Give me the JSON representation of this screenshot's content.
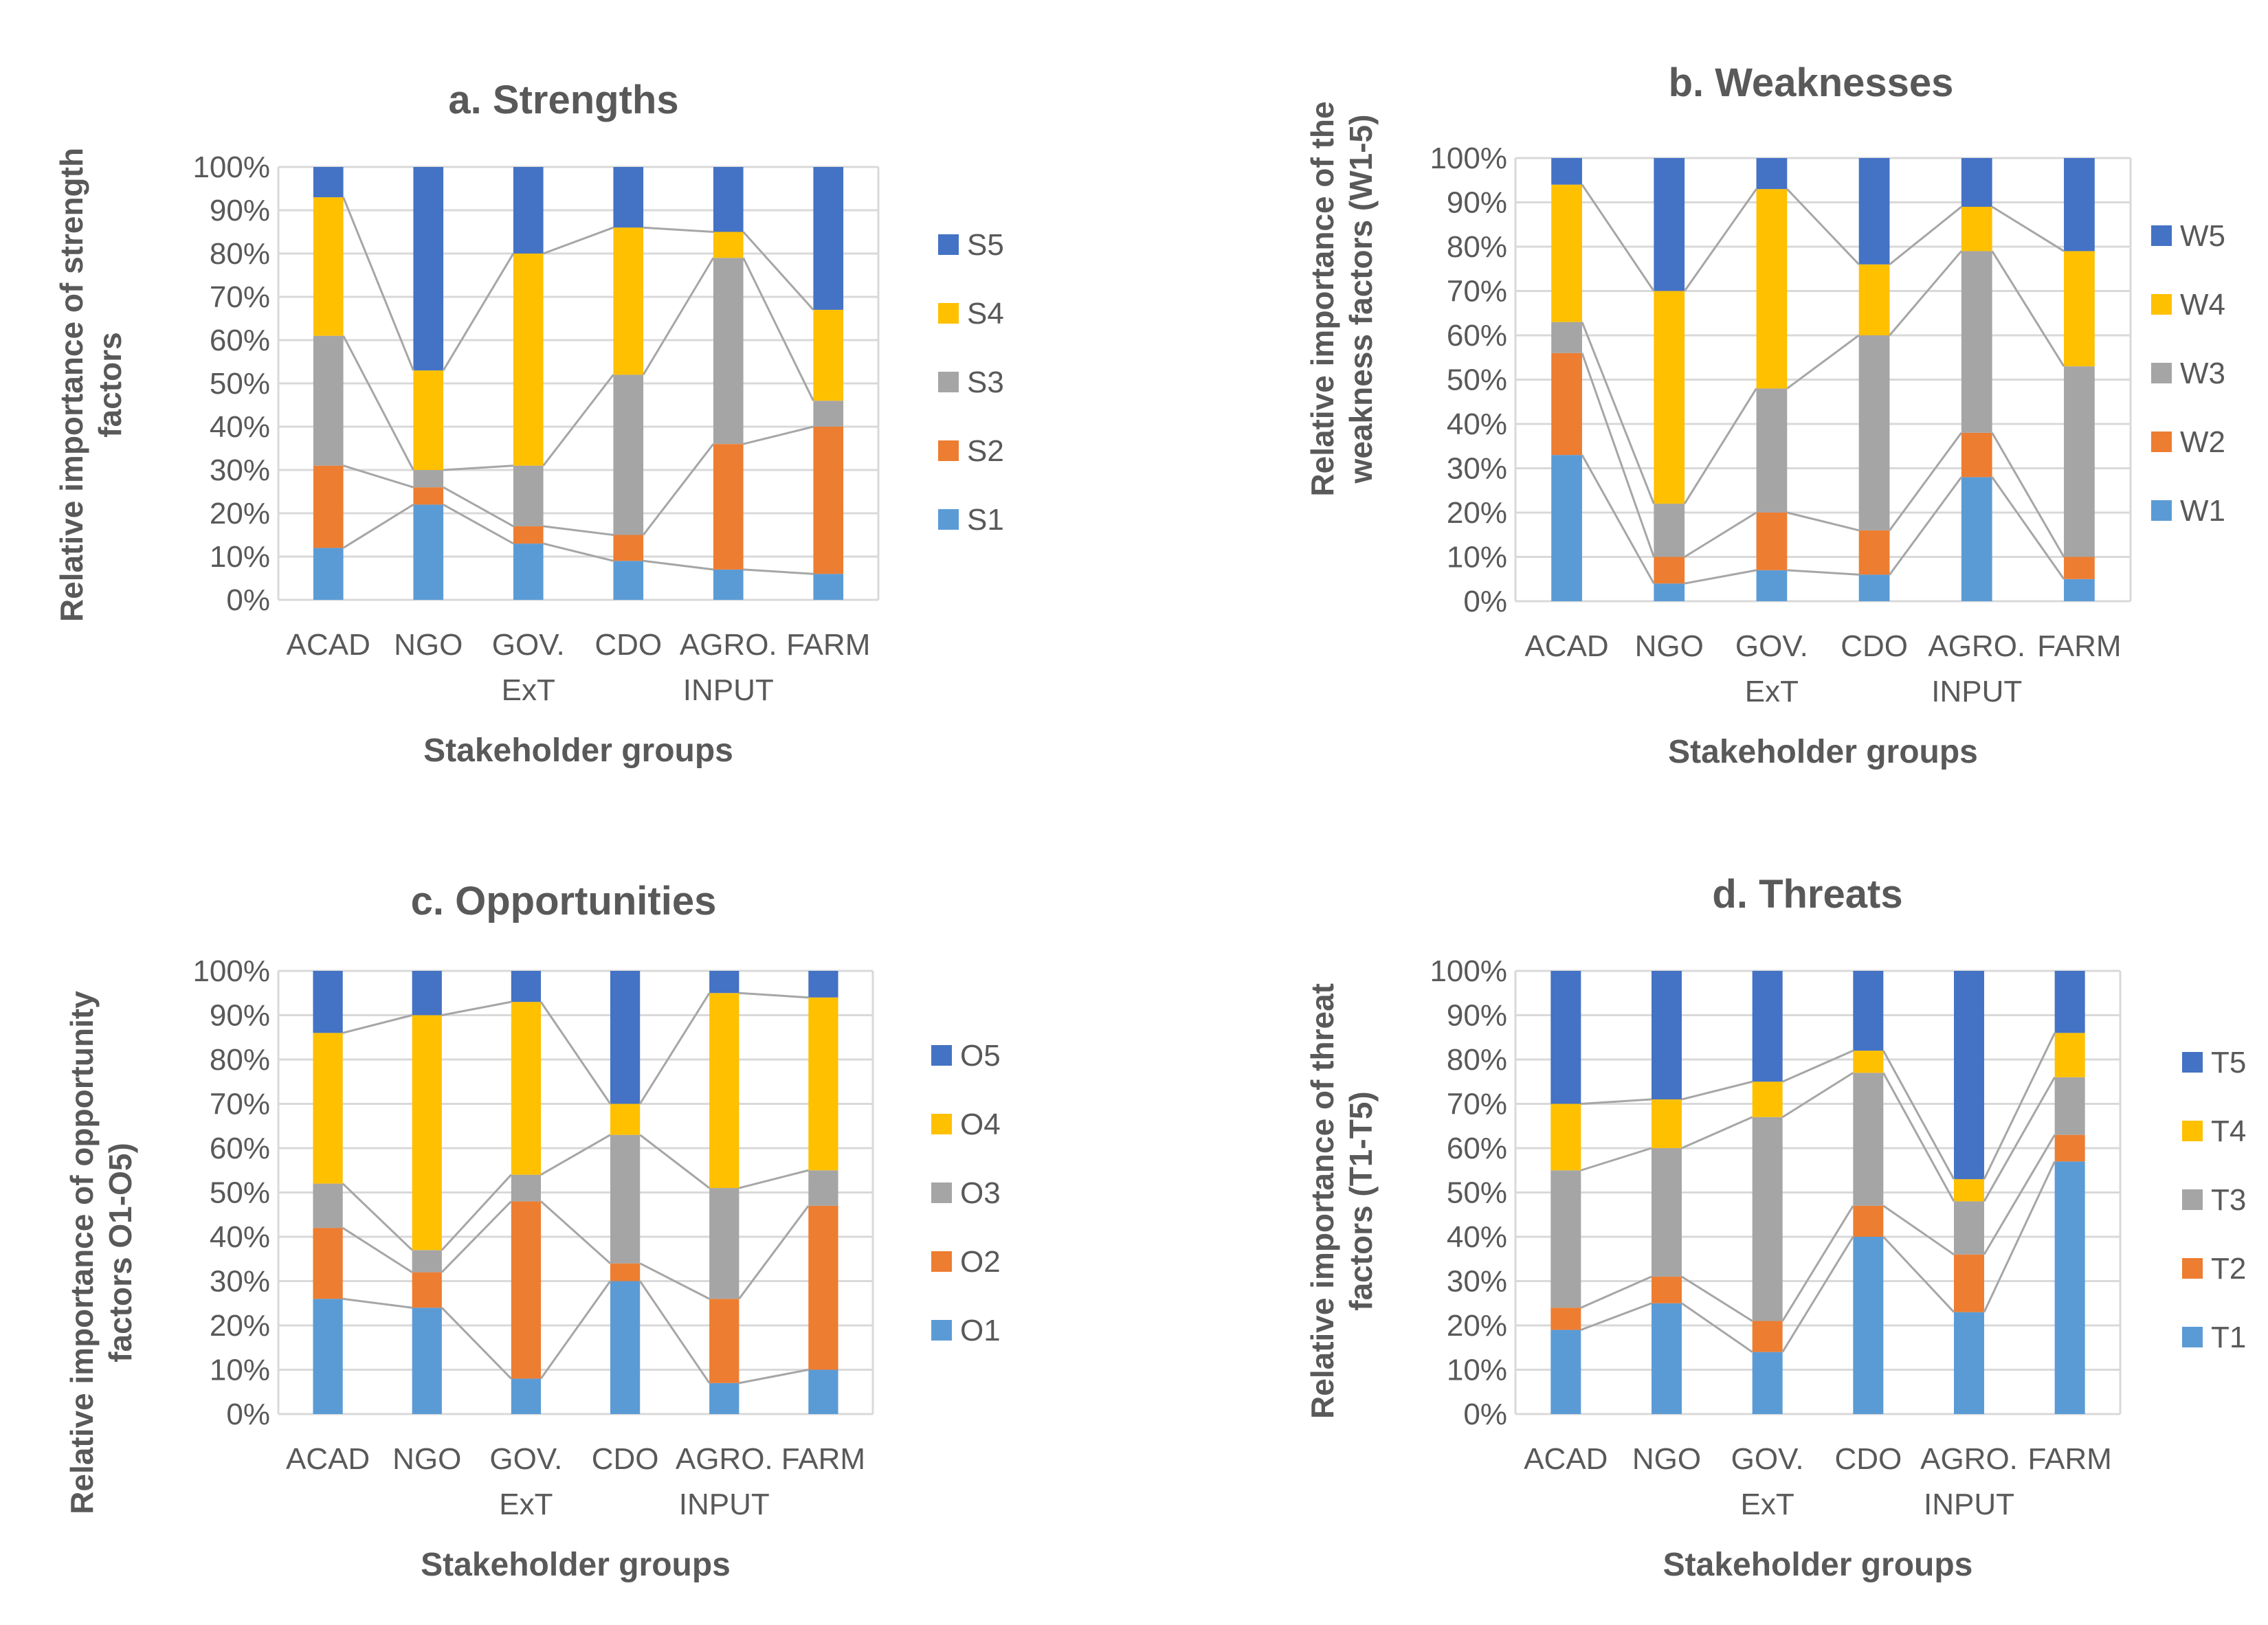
{
  "chart_data": [
    {
      "type": "bar",
      "stacked": true,
      "normalized": true,
      "title": "a. Strengths",
      "ylabel_lines": [
        "Relative importance of strength",
        "factors"
      ],
      "xlabel": "Stakeholder groups",
      "categories": [
        [
          "ACAD"
        ],
        [
          "NGO"
        ],
        [
          "GOV.",
          "ExT"
        ],
        [
          "CDO"
        ],
        [
          "AGRO.",
          "INPUT"
        ],
        [
          "FARM"
        ]
      ],
      "yticks": [
        "0%",
        "10%",
        "20%",
        "30%",
        "40%",
        "50%",
        "60%",
        "70%",
        "80%",
        "90%",
        "100%"
      ],
      "ylim": [
        0,
        100
      ],
      "series": [
        {
          "name": "S1",
          "values": [
            12,
            22,
            13,
            9,
            7,
            6
          ]
        },
        {
          "name": "S2",
          "values": [
            19,
            4,
            4,
            6,
            29,
            34
          ]
        },
        {
          "name": "S3",
          "values": [
            30,
            4,
            14,
            37,
            43,
            6
          ]
        },
        {
          "name": "S4",
          "values": [
            32,
            23,
            49,
            34,
            6,
            21
          ]
        },
        {
          "name": "S5",
          "values": [
            7,
            47,
            20,
            14,
            15,
            33
          ]
        }
      ]
    },
    {
      "type": "bar",
      "stacked": true,
      "normalized": true,
      "title": "b. Weaknesses",
      "ylabel_lines": [
        "Relative importance of the",
        "weakness factors (W1-5)"
      ],
      "xlabel": "Stakeholder groups",
      "categories": [
        [
          "ACAD"
        ],
        [
          "NGO"
        ],
        [
          "GOV.",
          "ExT"
        ],
        [
          "CDO"
        ],
        [
          "AGRO.",
          "INPUT"
        ],
        [
          "FARM"
        ]
      ],
      "yticks": [
        "0%",
        "10%",
        "20%",
        "30%",
        "40%",
        "50%",
        "60%",
        "70%",
        "80%",
        "90%",
        "100%"
      ],
      "ylim": [
        0,
        100
      ],
      "series": [
        {
          "name": "W1",
          "values": [
            33,
            4,
            7,
            6,
            28,
            5
          ]
        },
        {
          "name": "W2",
          "values": [
            23,
            6,
            13,
            10,
            10,
            5
          ]
        },
        {
          "name": "W3",
          "values": [
            7,
            12,
            28,
            44,
            41,
            43
          ]
        },
        {
          "name": "W4",
          "values": [
            31,
            48,
            45,
            16,
            10,
            26
          ]
        },
        {
          "name": "W5",
          "values": [
            6,
            30,
            7,
            24,
            11,
            21
          ]
        }
      ]
    },
    {
      "type": "bar",
      "stacked": true,
      "normalized": true,
      "title": "c. Opportunities",
      "ylabel_lines": [
        "Relative importance of opportunity",
        "factors O1-O5)"
      ],
      "xlabel": "Stakeholder groups",
      "categories": [
        [
          "ACAD"
        ],
        [
          "NGO"
        ],
        [
          "GOV.",
          "ExT"
        ],
        [
          "CDO"
        ],
        [
          "AGRO.",
          "INPUT"
        ],
        [
          "FARM"
        ]
      ],
      "yticks": [
        "0%",
        "10%",
        "20%",
        "30%",
        "40%",
        "50%",
        "60%",
        "70%",
        "80%",
        "90%",
        "100%"
      ],
      "ylim": [
        0,
        100
      ],
      "series": [
        {
          "name": "O1",
          "values": [
            26,
            24,
            8,
            30,
            7,
            10
          ]
        },
        {
          "name": "O2",
          "values": [
            16,
            8,
            40,
            4,
            19,
            37
          ]
        },
        {
          "name": "O3",
          "values": [
            10,
            5,
            6,
            29,
            25,
            8
          ]
        },
        {
          "name": "O4",
          "values": [
            34,
            53,
            39,
            7,
            44,
            39
          ]
        },
        {
          "name": "O5",
          "values": [
            14,
            10,
            7,
            30,
            5,
            6
          ]
        }
      ]
    },
    {
      "type": "bar",
      "stacked": true,
      "normalized": true,
      "title": "d. Threats",
      "ylabel_lines": [
        "Relative importance of threat",
        "factors (T1-T5)"
      ],
      "xlabel": "Stakeholder groups",
      "categories": [
        [
          "ACAD"
        ],
        [
          "NGO"
        ],
        [
          "GOV.",
          "ExT"
        ],
        [
          "CDO"
        ],
        [
          "AGRO.",
          "INPUT"
        ],
        [
          "FARM"
        ]
      ],
      "yticks": [
        "0%",
        "10%",
        "20%",
        "30%",
        "40%",
        "50%",
        "60%",
        "70%",
        "80%",
        "90%",
        "100%"
      ],
      "ylim": [
        0,
        100
      ],
      "series": [
        {
          "name": "T1",
          "values": [
            19,
            25,
            14,
            40,
            23,
            57
          ]
        },
        {
          "name": "T2",
          "values": [
            5,
            6,
            7,
            7,
            13,
            6
          ]
        },
        {
          "name": "T3",
          "values": [
            31,
            29,
            46,
            30,
            12,
            13
          ]
        },
        {
          "name": "T4",
          "values": [
            15,
            11,
            8,
            5,
            5,
            10
          ]
        },
        {
          "name": "T5",
          "values": [
            30,
            29,
            25,
            18,
            47,
            14
          ]
        }
      ]
    }
  ],
  "colors": {
    "series": [
      "#5B9BD5",
      "#ED7D31",
      "#A5A5A5",
      "#FFC000",
      "#4472C4"
    ],
    "grid": "#d9d9d9",
    "text": "#595959",
    "connector": "#a6a6a6"
  }
}
